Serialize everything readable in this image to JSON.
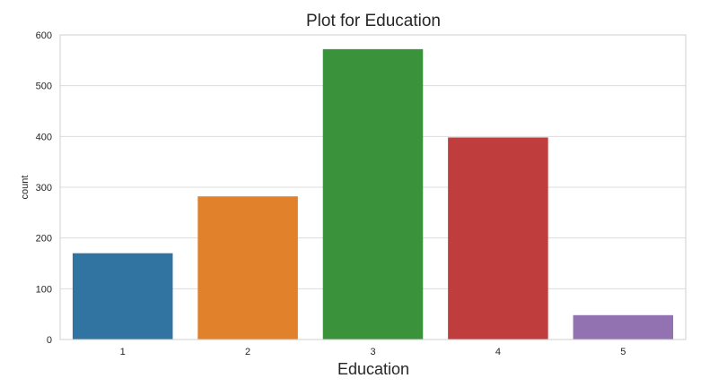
{
  "chart_data": {
    "type": "bar",
    "title": "Plot for Education",
    "xlabel": "Education",
    "ylabel": "count",
    "categories": [
      "1",
      "2",
      "3",
      "4",
      "5"
    ],
    "values": [
      170,
      282,
      572,
      398,
      48
    ],
    "ylim": [
      0,
      600
    ],
    "yticks": [
      "0",
      "100",
      "200",
      "300",
      "400",
      "500",
      "600"
    ],
    "grid": true,
    "colors": [
      "#3274a1",
      "#e1812c",
      "#3a923a",
      "#c03d3e",
      "#9372b2"
    ]
  }
}
